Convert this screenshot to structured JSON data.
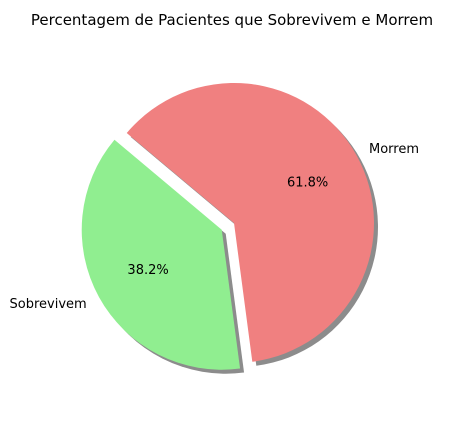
{
  "chart_data": {
    "type": "pie",
    "title": "Percentagem de Pacientes que Sobrevivem e Morrem",
    "slices": [
      {
        "label": "Sobrevivem",
        "value": 38.2,
        "percent_label": "38.2%",
        "color": "#90ee90",
        "exploded": true
      },
      {
        "label": "Morrem",
        "value": 61.8,
        "percent_label": "61.8%",
        "color": "#f08080",
        "exploded": false
      }
    ],
    "start_angle_deg": 140,
    "shadow": true,
    "legend": "none"
  }
}
